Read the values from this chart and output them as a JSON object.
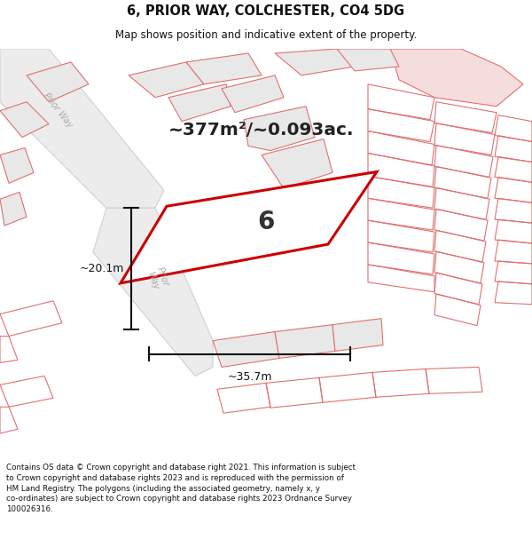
{
  "title_line1": "6, PRIOR WAY, COLCHESTER, CO4 5DG",
  "title_line2": "Map shows position and indicative extent of the property.",
  "area_text": "~377m²/~0.093ac.",
  "plot_label": "6",
  "dim_width": "~35.7m",
  "dim_height": "~20.1m",
  "footer_text": "Contains OS data © Crown copyright and database right 2021. This information is subject\nto Crown copyright and database rights 2023 and is reproduced with the permission of\nHM Land Registry. The polygons (including the associated geometry, namely x, y\nco-ordinates) are subject to Crown copyright and database rights 2023 Ordnance Survey\n100026316.",
  "bg_color": "#ffffff",
  "map_bg": "#ffffff",
  "plot_fill": "#ffffff",
  "plot_edge": "#cc0000",
  "parcel_fill": "#e8e8e8",
  "parcel_edge": "#e07070",
  "road_fill": "#e8e8e8",
  "road_edge": "#cccccc",
  "pink_fill": "#f5dddd",
  "dim_color": "#111111",
  "title_color": "#111111",
  "footer_color": "#111111",
  "road_label_color": "#aaaaaa"
}
